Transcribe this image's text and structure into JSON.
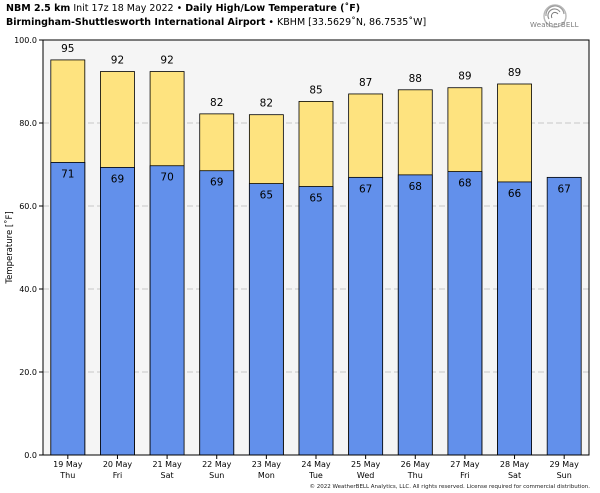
{
  "header": {
    "model": "NBM 2.5 km",
    "init": "Init 17z 18 May 2022",
    "sep1": "•",
    "product": "Daily High/Low Temperature (˚F)",
    "station": "Birmingham-Shuttlesworth International Airport",
    "sep2": "•",
    "coords": "KBHM [33.5629˚N, 86.7535˚W]"
  },
  "logo": {
    "text": "WeatherBELL",
    "icon": "weatherbell-swirl-icon"
  },
  "footer": "© 2022 WeatherBELL Analytics, LLC. All rights reserved. License required for commercial distribution.",
  "colors": {
    "high": "#fee37f",
    "low": "#6290eb",
    "plot_bg": "#f5f5f5",
    "grid": "#c8c8c8"
  },
  "chart_data": {
    "type": "bar",
    "xlabel": "",
    "ylabel": "Temperature [˚F]",
    "ylim": [
      0,
      100
    ],
    "yticks": [
      "0.0",
      "20.0",
      "40.0",
      "60.0",
      "80.0",
      "100.0"
    ],
    "grid": true,
    "categories": [
      {
        "date": "19 May",
        "day": "Thu"
      },
      {
        "date": "20 May",
        "day": "Fri"
      },
      {
        "date": "21 May",
        "day": "Sat"
      },
      {
        "date": "22 May",
        "day": "Sun"
      },
      {
        "date": "23 May",
        "day": "Mon"
      },
      {
        "date": "24 May",
        "day": "Tue"
      },
      {
        "date": "25 May",
        "day": "Wed"
      },
      {
        "date": "26 May",
        "day": "Thu"
      },
      {
        "date": "27 May",
        "day": "Fri"
      },
      {
        "date": "28 May",
        "day": "Sat"
      },
      {
        "date": "29 May",
        "day": "Sun"
      }
    ],
    "series": [
      {
        "key": "high",
        "values": [
          95,
          92,
          92,
          82,
          82,
          85,
          87,
          88,
          89,
          89,
          null
        ],
        "precise": [
          95.2,
          92.4,
          92.4,
          82.2,
          82.0,
          85.2,
          87.0,
          88.0,
          88.5,
          89.4,
          null
        ]
      },
      {
        "key": "low",
        "values": [
          71,
          69,
          70,
          69,
          65,
          65,
          67,
          68,
          68,
          66,
          67
        ],
        "precise": [
          70.5,
          69.3,
          69.7,
          68.5,
          65.4,
          64.7,
          66.9,
          67.5,
          68.3,
          65.8,
          66.9
        ]
      }
    ]
  }
}
